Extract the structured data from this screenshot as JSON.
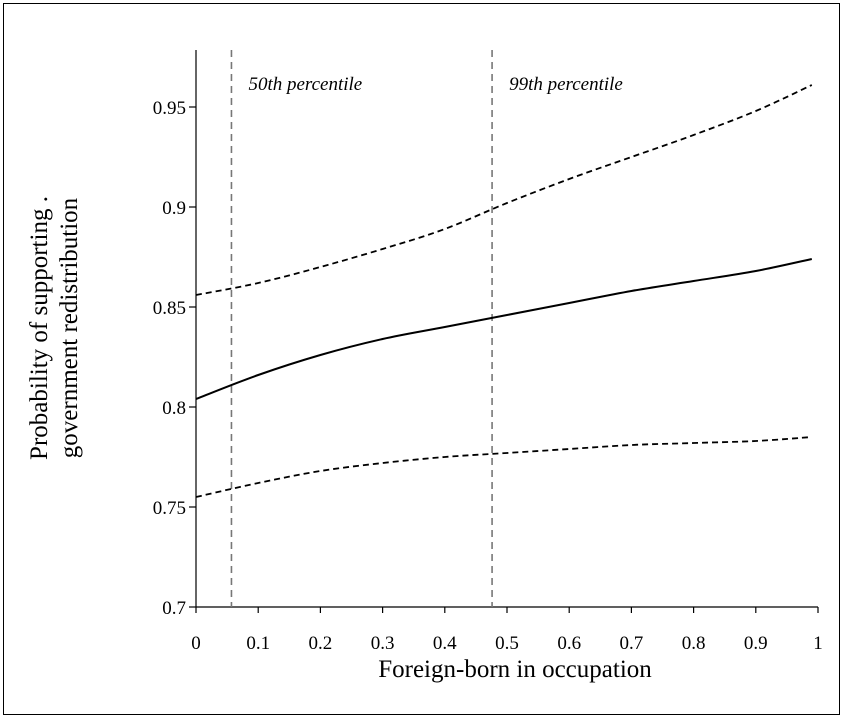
{
  "chart_data": {
    "type": "line",
    "xlabel": "Foreign-born in occupation",
    "ylabel_line1": "Probability of supporting .",
    "ylabel_line2": "government redistribution",
    "xlim": [
      0,
      1
    ],
    "ylim": [
      0.7,
      0.975
    ],
    "x_ticks": [
      "0",
      "0.1",
      "0.2",
      "0.3",
      "0.4",
      "0.5",
      "0.6",
      "0.7",
      "0.8",
      "0.9",
      "1"
    ],
    "y_ticks": [
      "0.7",
      "0.75",
      "0.8",
      "0.85",
      "0.9",
      "0.95"
    ],
    "grid": false,
    "x": [
      0,
      0.1,
      0.2,
      0.3,
      0.4,
      0.5,
      0.6,
      0.7,
      0.8,
      0.9,
      0.99
    ],
    "series": [
      {
        "role": "estimate",
        "style": "solid",
        "values": [
          0.804,
          0.816,
          0.826,
          0.834,
          0.84,
          0.846,
          0.852,
          0.858,
          0.863,
          0.868,
          0.874
        ]
      },
      {
        "role": "upper bound",
        "style": "dashed",
        "values": [
          0.856,
          0.862,
          0.87,
          0.879,
          0.889,
          0.902,
          0.914,
          0.925,
          0.936,
          0.948,
          0.961
        ]
      },
      {
        "role": "lower bound",
        "style": "dashed",
        "values": [
          0.755,
          0.762,
          0.768,
          0.772,
          0.775,
          0.777,
          0.779,
          0.781,
          0.782,
          0.783,
          0.785
        ]
      }
    ],
    "reference_lines": [
      {
        "x": 0.057,
        "label": "50th percentile"
      },
      {
        "x": 0.476,
        "label": "99th percentile"
      }
    ]
  }
}
